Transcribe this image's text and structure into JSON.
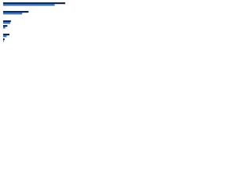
{
  "chart_data": {
    "type": "bar",
    "orientation": "horizontal",
    "categories": [
      null,
      null,
      null,
      null,
      null,
      null
    ],
    "series": [
      {
        "color": "#0f2a4f",
        "values": [
          88,
          36,
          11,
          6,
          9,
          2
        ]
      },
      {
        "color": "#2e6fbf",
        "values": [
          73,
          27,
          10,
          3,
          5,
          1
        ]
      }
    ],
    "xlim": [
      0,
      100
    ]
  }
}
